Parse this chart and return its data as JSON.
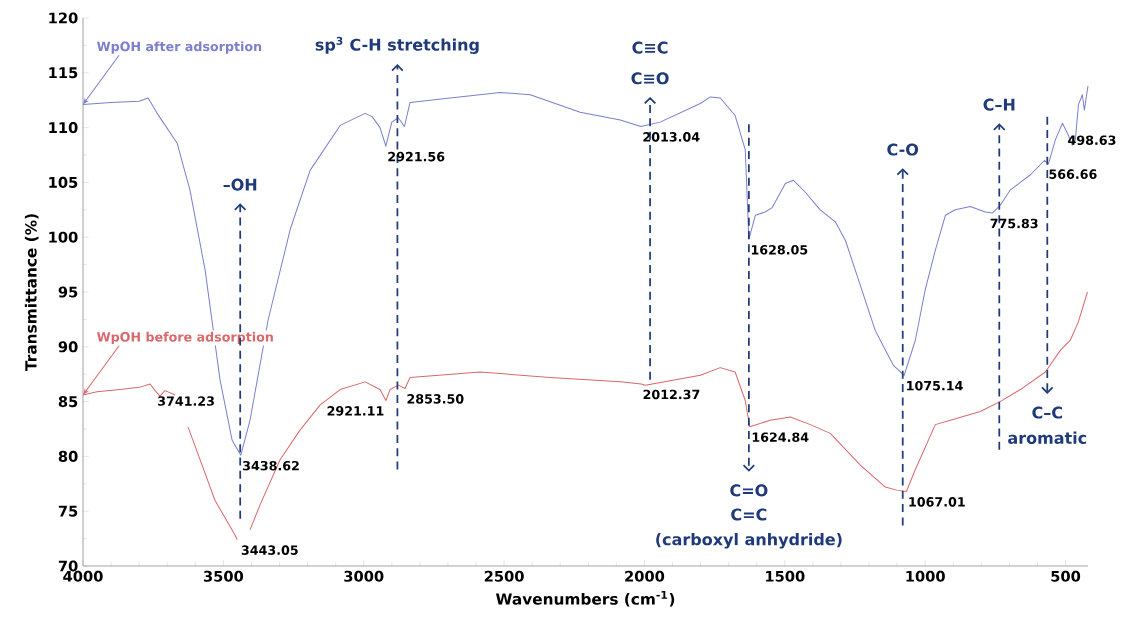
{
  "chart_data": {
    "type": "line",
    "xlabel": "Wavenumbers (cm$^{-1}$)",
    "ylabel": "Transmittance (%)",
    "xlim": [
      4000,
      420
    ],
    "ylim": [
      70,
      120
    ],
    "xticks": [
      500,
      1000,
      1500,
      2000,
      2500,
      3000,
      3500,
      4000
    ],
    "yticks": [
      70,
      75,
      80,
      85,
      90,
      95,
      100,
      105,
      110,
      115,
      120
    ],
    "series": [
      {
        "name": "WpOH after adsorption",
        "color": "#7b7fce",
        "x": [
          4000,
          3900,
          3800,
          3768,
          3736,
          3665,
          3619,
          3565,
          3512,
          3469,
          3438,
          3405,
          3341,
          3262,
          3191,
          3084,
          2995,
          2970,
          2942,
          2921,
          2900,
          2877,
          2855,
          2835,
          2692,
          2514,
          2407,
          2229,
          2086,
          2013,
          1944,
          1801,
          1765,
          1730,
          1677,
          1641,
          1628,
          1605,
          1570,
          1545,
          1498,
          1470,
          1427,
          1374,
          1320,
          1284,
          1231,
          1178,
          1142,
          1113,
          1075,
          1035,
          1000,
          964,
          928,
          893,
          839,
          786,
          761,
          733,
          697,
          661,
          625,
          575,
          561,
          536,
          511,
          490,
          476,
          465,
          454,
          440,
          433,
          420
        ],
        "values": [
          112.1,
          112.3,
          112.4,
          112.7,
          111.3,
          108.6,
          104.3,
          97.0,
          87.0,
          81.5,
          80.1,
          83.3,
          92.4,
          100.7,
          106.1,
          110.2,
          111.3,
          111.0,
          110.0,
          108.3,
          110.5,
          110.9,
          110.1,
          112.3,
          112.7,
          113.2,
          113.0,
          111.4,
          110.7,
          110.1,
          110.5,
          112.2,
          112.8,
          112.7,
          111.1,
          108.0,
          99.8,
          102.0,
          102.3,
          102.7,
          104.9,
          105.2,
          104.1,
          102.5,
          101.4,
          99.7,
          95.6,
          91.5,
          89.7,
          88.3,
          87.4,
          90.6,
          95.2,
          98.8,
          102.0,
          102.5,
          102.8,
          102.3,
          102.2,
          102.9,
          104.3,
          105.0,
          105.7,
          107.0,
          106.7,
          108.9,
          110.4,
          109.3,
          108.4,
          108.9,
          112.1,
          113.0,
          111.6,
          113.8
        ]
      },
      {
        "name": "WpOH before adsorption",
        "color": "#d9686a",
        "x": [
          4000,
          3950,
          3868,
          3800,
          3761,
          3743,
          3726,
          3708,
          3672,
          3650,
          3626,
          3583,
          3530,
          3458,
          3451,
          3430,
          3405,
          3369,
          3298,
          3227,
          3155,
          3084,
          2995,
          2942,
          2921,
          2906,
          2877,
          2853,
          2835,
          2585,
          2336,
          2086,
          2012,
          1997,
          1801,
          1730,
          1677,
          1641,
          1625,
          1552,
          1480,
          1409,
          1338,
          1231,
          1142,
          1099,
          1067,
          1035,
          964,
          910,
          804,
          733,
          661,
          572,
          518,
          483,
          454,
          422
        ],
        "values": [
          85.6,
          85.9,
          86.1,
          86.3,
          86.6,
          86.0,
          85.5,
          86.0,
          85.6,
          null,
          82.7,
          79.7,
          76.0,
          72.8,
          72.4,
          null,
          73.3,
          75.6,
          79.7,
          82.4,
          84.7,
          86.1,
          86.8,
          86.1,
          85.1,
          86.1,
          86.5,
          86.2,
          87.2,
          87.7,
          87.2,
          86.8,
          86.6,
          86.5,
          87.4,
          88.1,
          87.7,
          85.1,
          82.7,
          83.3,
          83.6,
          82.9,
          82.1,
          79.2,
          77.2,
          76.9,
          76.8,
          78.8,
          82.9,
          83.3,
          84.1,
          85.0,
          86.1,
          87.7,
          89.7,
          90.6,
          92.3,
          95.0
        ]
      }
    ],
    "annotations": [
      "–OH",
      "sp$^{3}$ C-H stretching",
      "C≡C",
      "C≡O",
      "C=O",
      "C=C",
      "(carboxyl anhydride)",
      "C-O",
      "C–H",
      "C–C",
      "aromatic",
      {
        "text": "3438.62",
        "x": 3438.62,
        "y": 80.1
      },
      {
        "text": "2921.56",
        "x": 2921.56,
        "y": 108.3
      },
      {
        "text": "2013.04",
        "x": 2013.04,
        "y": 110.1
      },
      {
        "text": "1628.05",
        "x": 1628.05,
        "y": 99.8
      },
      {
        "text": "1075.14",
        "x": 1075.14,
        "y": 87.4
      },
      {
        "text": "775.83",
        "x": 775.83,
        "y": 102.2
      },
      {
        "text": "566.66",
        "x": 566.66,
        "y": 106.7
      },
      {
        "text": "498.63",
        "x": 498.63,
        "y": 109.8
      },
      {
        "text": "3741.23",
        "x": 3741.23,
        "y": 86.0
      },
      {
        "text": "3443.05",
        "x": 3443.05,
        "y": 72.4
      },
      {
        "text": "2921.11",
        "x": 2921.11,
        "y": 85.1
      },
      {
        "text": "2853.50",
        "x": 2853.5,
        "y": 86.2
      },
      {
        "text": "2012.37",
        "x": 2012.37,
        "y": 86.6
      },
      {
        "text": "1624.84",
        "x": 1624.84,
        "y": 82.7
      },
      {
        "text": "1067.01",
        "x": 1067.01,
        "y": 76.8
      }
    ]
  }
}
